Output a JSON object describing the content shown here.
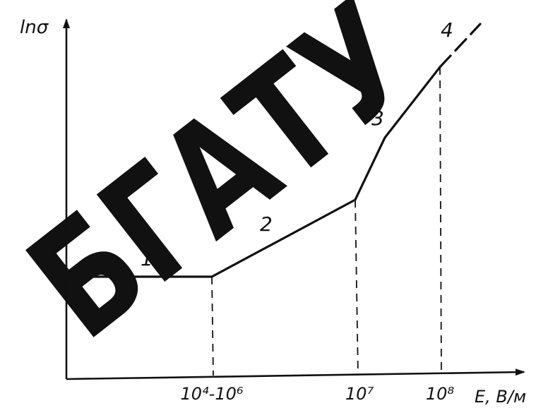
{
  "watermark": {
    "text": "БГАТУ",
    "color": "#000000"
  },
  "chart_data": {
    "type": "line",
    "title": "",
    "ylabel": "lnσ",
    "xlabel": "E, В/м",
    "x_ticks": [
      "10⁴-10⁶",
      "10⁷",
      "10⁸"
    ],
    "grid": false,
    "legend": "none",
    "regions": [
      "1",
      "2",
      "3",
      "4"
    ],
    "series": [
      {
        "points": [
          {
            "x": 0,
            "y": 1.0
          },
          {
            "x": 1,
            "y": 1.0
          },
          {
            "x": 2,
            "y": 2.0
          },
          {
            "x": 2.6,
            "y": 3.7
          },
          {
            "x": 3,
            "y": 4.5
          }
        ],
        "extrapolation": [
          {
            "x": 3,
            "y": 4.5
          },
          {
            "x": 3.4,
            "y": 5.2
          }
        ]
      }
    ],
    "drop_lines_at_x": [
      1,
      2,
      3
    ],
    "xlim": [
      0,
      3.5
    ],
    "ylim": [
      0,
      5.5
    ]
  }
}
